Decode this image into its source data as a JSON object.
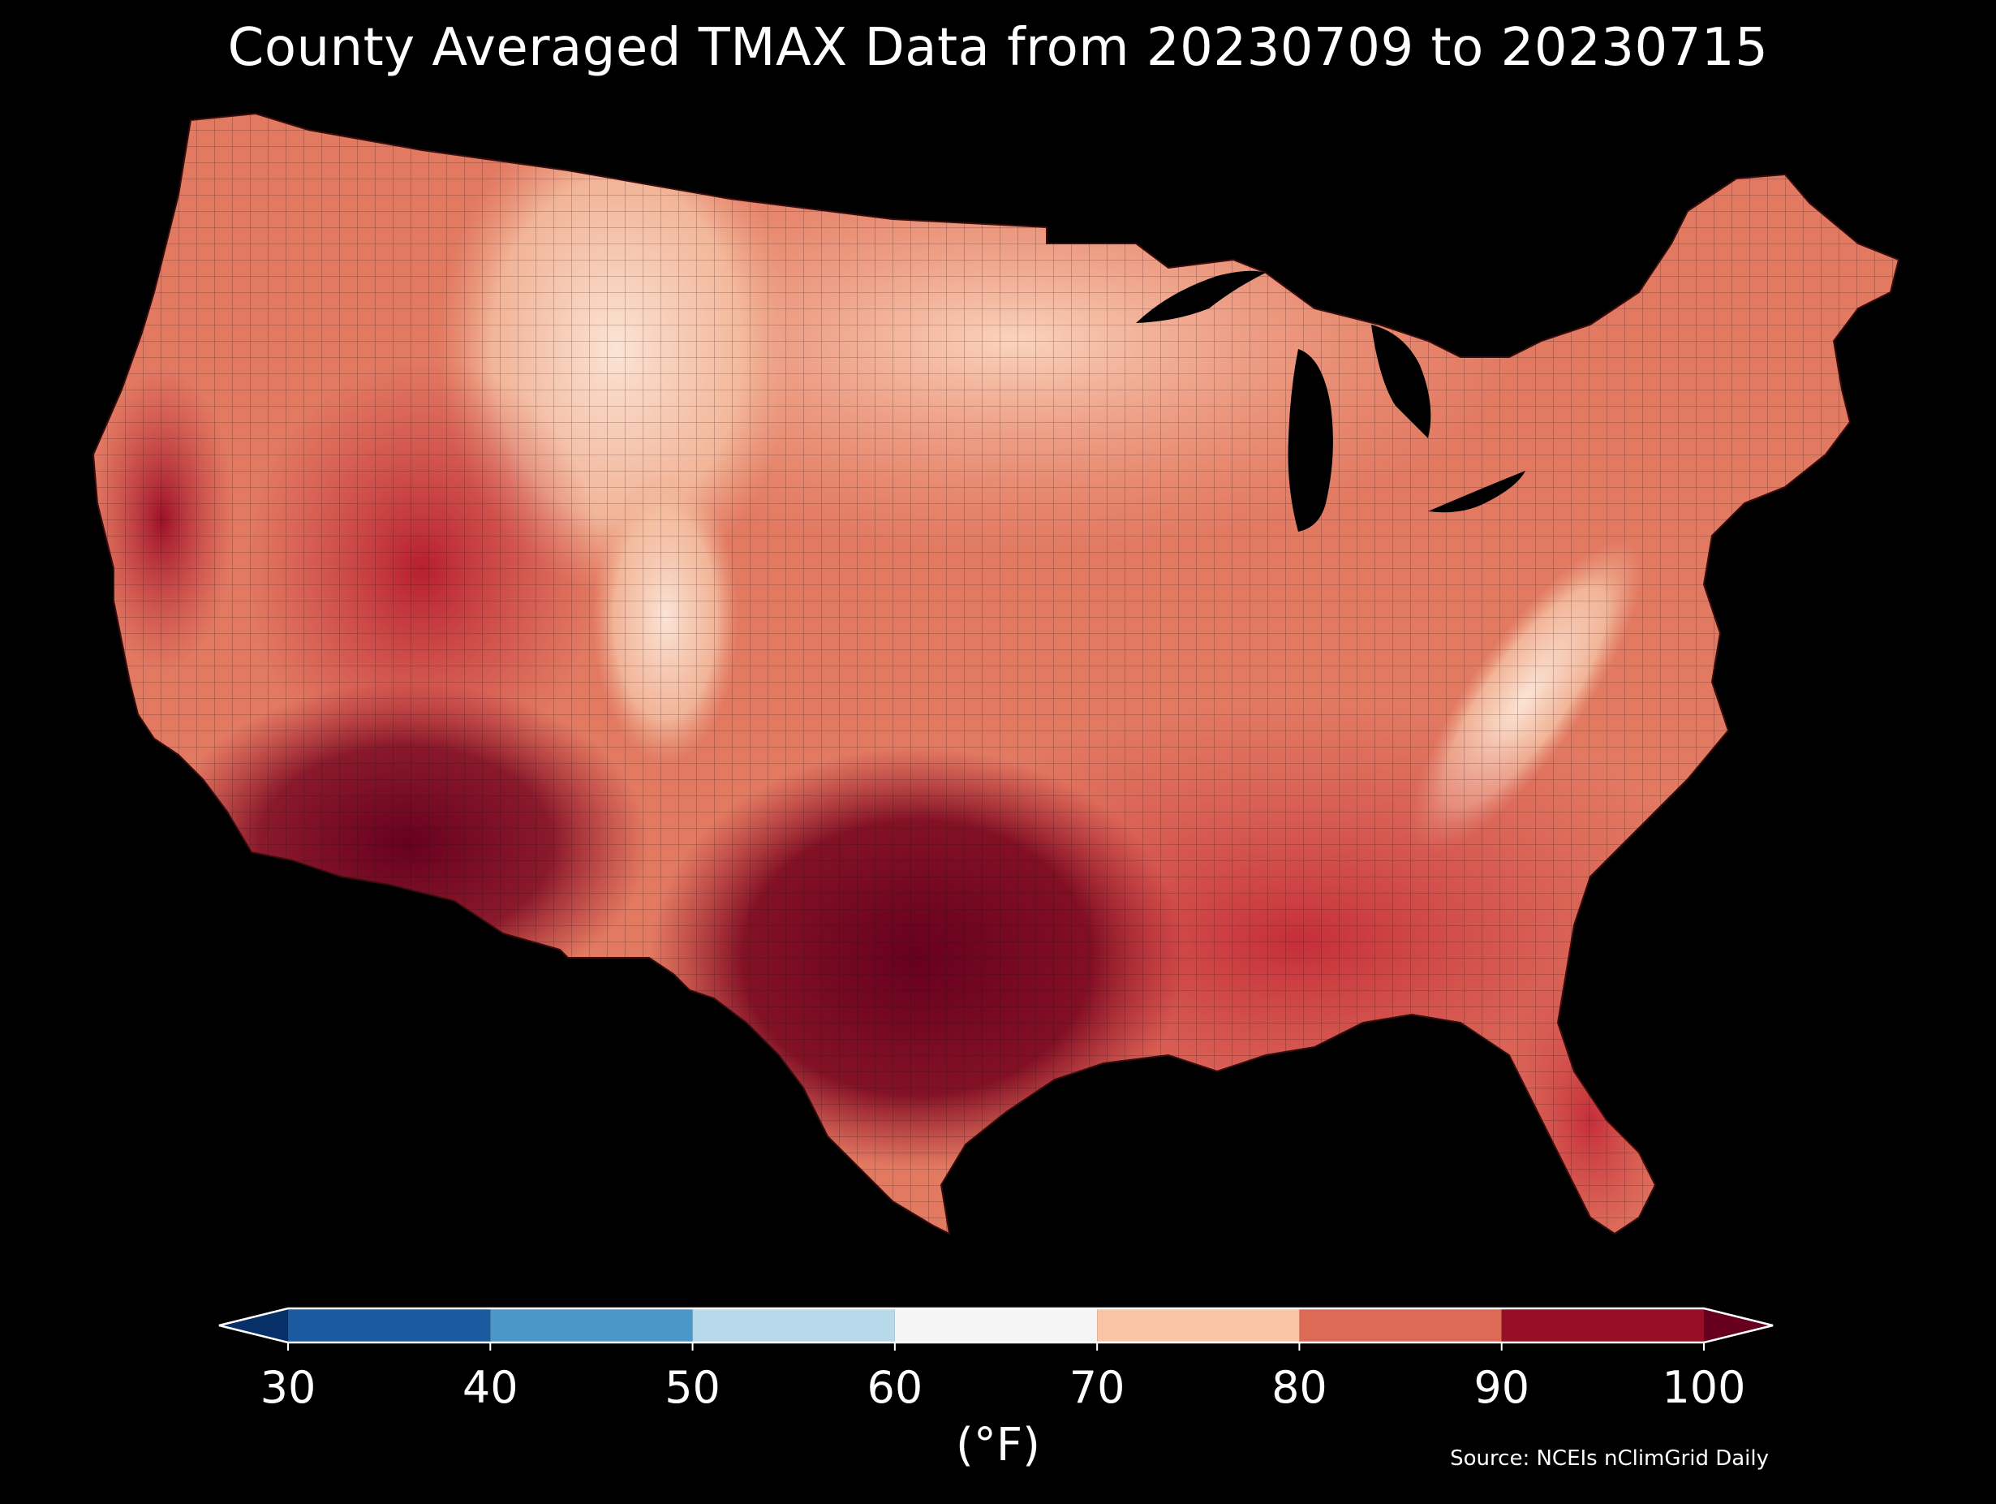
{
  "title": "County Averaged TMAX Data from 20230709 to 20230715",
  "colorbar": {
    "unit_label": "(°F)",
    "ticks": [
      "30",
      "40",
      "50",
      "60",
      "70",
      "80",
      "90",
      "100"
    ],
    "bins": [
      {
        "min": 30,
        "max": 40,
        "color": "#1c5a9f"
      },
      {
        "min": 40,
        "max": 50,
        "color": "#4a97c8"
      },
      {
        "min": 50,
        "max": 60,
        "color": "#b8d9ea"
      },
      {
        "min": 60,
        "max": 70,
        "color": "#f5f5f5"
      },
      {
        "min": 70,
        "max": 80,
        "color": "#fac4a7"
      },
      {
        "min": 80,
        "max": 90,
        "color": "#dd6a55"
      },
      {
        "min": 90,
        "max": 100,
        "color": "#980f25"
      }
    ],
    "under_color": "#083068",
    "over_color": "#67001f"
  },
  "source": "Source: NCEIs nClimGrid Daily",
  "map": {
    "background": "#000000",
    "variable": "TMAX",
    "units": "°F",
    "regional_levels": {
      "pacific_northwest_coast": 78,
      "california_central_valley": 96,
      "desert_southwest": 104,
      "great_basin": 90,
      "rocky_mountains": 72,
      "northern_plains": 76,
      "southern_plains_texas": 100,
      "midwest": 82,
      "great_lakes": 76,
      "appalachians": 74,
      "southeast": 90,
      "florida": 92,
      "northeast": 80,
      "new_england": 78
    }
  }
}
